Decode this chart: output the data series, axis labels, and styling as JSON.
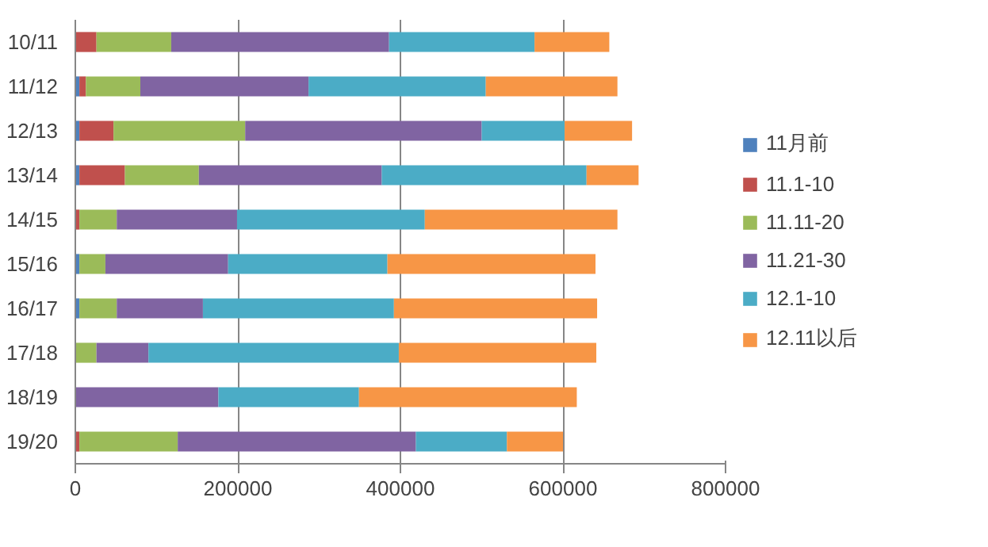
{
  "chart_data": {
    "type": "bar",
    "orientation": "horizontal",
    "stacked": true,
    "categories": [
      "10/11",
      "11/12",
      "12/13",
      "13/14",
      "14/15",
      "15/16",
      "16/17",
      "17/18",
      "18/19",
      "19/20"
    ],
    "series": [
      {
        "name": "11月前",
        "color": "#4f81bd",
        "values": [
          0,
          5000,
          5000,
          5000,
          0,
          5000,
          5000,
          0,
          0,
          0
        ]
      },
      {
        "name": "11.1-10",
        "color": "#c0504d",
        "values": [
          26000,
          8000,
          42000,
          56000,
          5000,
          0,
          0,
          0,
          0,
          5000
        ]
      },
      {
        "name": "11.11-20",
        "color": "#9bbb59",
        "values": [
          92000,
          67000,
          162000,
          91000,
          46000,
          32000,
          46000,
          26000,
          0,
          121000
        ]
      },
      {
        "name": "11.21-30",
        "color": "#8064a2",
        "values": [
          268000,
          207000,
          291000,
          225000,
          148000,
          151000,
          106000,
          64000,
          176000,
          293000
        ]
      },
      {
        "name": "12.1-10",
        "color": "#4bacc6",
        "values": [
          179000,
          218000,
          102000,
          252000,
          231000,
          196000,
          235000,
          308000,
          173000,
          112000
        ]
      },
      {
        "name": "12.11以后",
        "color": "#f79646",
        "values": [
          92000,
          162000,
          83000,
          64000,
          237000,
          256000,
          250000,
          243000,
          268000,
          69000
        ]
      }
    ],
    "xlim": [
      0,
      800000
    ],
    "xticks": [
      0,
      200000,
      400000,
      600000,
      800000
    ],
    "grid": "x",
    "legend": "right"
  }
}
